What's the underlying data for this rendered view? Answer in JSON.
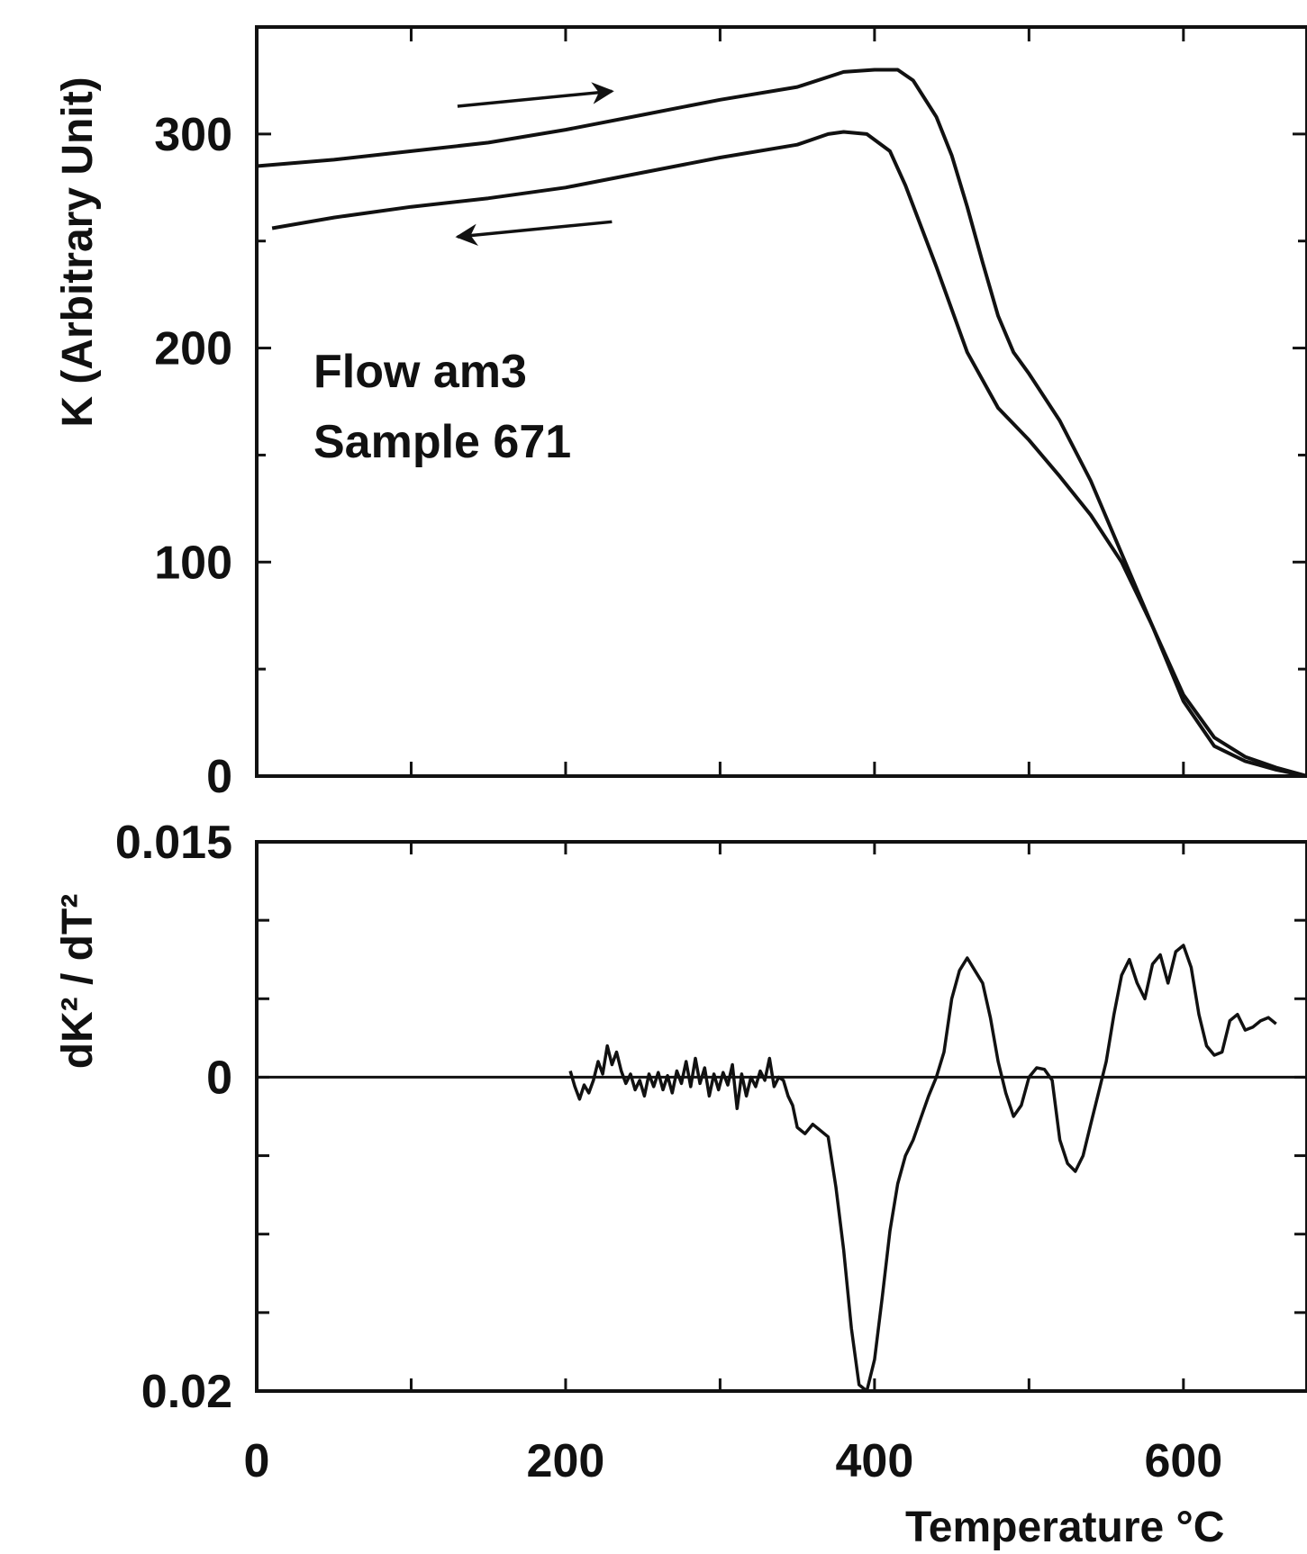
{
  "chart_data": [
    {
      "type": "line",
      "panel": "top",
      "ylabel": "K (Arbitrary Unit)",
      "xlim": [
        0,
        680
      ],
      "ylim": [
        0,
        350
      ],
      "y_ticks": [
        0,
        100,
        200,
        300
      ],
      "x_ticks": [
        0,
        200,
        400,
        600
      ],
      "grid": false,
      "annotation_lines": [
        "Flow am3",
        "Sample 671"
      ],
      "series": [
        {
          "direction": "heating",
          "x": [
            0,
            50,
            100,
            150,
            200,
            250,
            300,
            350,
            380,
            400,
            415,
            425,
            440,
            450,
            460,
            470,
            480,
            490,
            500,
            520,
            540,
            560,
            580,
            600,
            620,
            640,
            660,
            680
          ],
          "y": [
            285,
            288,
            292,
            296,
            302,
            309,
            316,
            322,
            329,
            330,
            330,
            325,
            308,
            290,
            266,
            240,
            215,
            198,
            188,
            166,
            138,
            104,
            70,
            38,
            18,
            9,
            4,
            0
          ]
        },
        {
          "direction": "cooling",
          "x": [
            10,
            50,
            100,
            150,
            200,
            250,
            300,
            350,
            370,
            380,
            395,
            410,
            420,
            440,
            460,
            480,
            500,
            520,
            540,
            560,
            580,
            600,
            620,
            640,
            660,
            680
          ],
          "y": [
            256,
            261,
            266,
            270,
            275,
            282,
            289,
            295,
            300,
            301,
            300,
            292,
            276,
            238,
            198,
            172,
            157,
            140,
            122,
            100,
            70,
            35,
            14,
            7,
            3,
            0
          ]
        }
      ],
      "arrows": [
        {
          "direction": "right",
          "from": [
            130,
            313
          ],
          "to": [
            230,
            320
          ]
        },
        {
          "direction": "left",
          "from": [
            230,
            259
          ],
          "to": [
            130,
            252
          ]
        }
      ]
    },
    {
      "type": "line",
      "panel": "bottom",
      "ylabel": "dK² / dT²",
      "xlabel": "Temperature °C",
      "xlim": [
        0,
        680
      ],
      "ylim": [
        -0.02,
        0.015
      ],
      "y_tick_labels": [
        {
          "value": 0.015,
          "label": "0.015"
        },
        {
          "value": 0,
          "label": "0"
        },
        {
          "value": -0.02,
          "label": "0.02"
        }
      ],
      "x_ticks": [
        0,
        200,
        400,
        600
      ],
      "zero_line": true,
      "grid": false,
      "series": [
        {
          "x": [
            203,
            206,
            209,
            212,
            215,
            218,
            221,
            224,
            227,
            230,
            233,
            236,
            239,
            242,
            245,
            248,
            251,
            254,
            257,
            260,
            263,
            266,
            269,
            272,
            275,
            278,
            281,
            284,
            287,
            290,
            293,
            296,
            299,
            302,
            305,
            308,
            311,
            314,
            317,
            320,
            323,
            326,
            329,
            332,
            335,
            338,
            341,
            344,
            347,
            350,
            355,
            360,
            365,
            370,
            375,
            380,
            385,
            390,
            395,
            400,
            405,
            410,
            415,
            420,
            425,
            430,
            435,
            440,
            445,
            450,
            455,
            460,
            465,
            470,
            475,
            480,
            485,
            490,
            495,
            500,
            505,
            510,
            515,
            520,
            525,
            530,
            535,
            540,
            545,
            550,
            555,
            560,
            565,
            570,
            575,
            580,
            585,
            590,
            595,
            600,
            605,
            610,
            615,
            620,
            625,
            630,
            635,
            640,
            645,
            650,
            655,
            660
          ],
          "y": [
            0.0004,
            -0.0006,
            -0.0014,
            -0.0005,
            -0.001,
            -0.0002,
            0.001,
            0.0002,
            0.002,
            0.0008,
            0.0016,
            0.0004,
            -0.0004,
            0.0002,
            -0.0008,
            -0.0002,
            -0.0012,
            0.0002,
            -0.0006,
            0.0003,
            -0.0008,
            0.0001,
            -0.001,
            0.0004,
            -0.0004,
            0.001,
            -0.0006,
            0.0012,
            -0.0004,
            0.0006,
            -0.0012,
            0.0002,
            -0.0008,
            0.0003,
            -0.0005,
            0.0008,
            -0.002,
            0.0002,
            -0.0012,
            0.0,
            -0.0006,
            0.0004,
            -0.0002,
            0.0012,
            -0.0006,
            0.0,
            -0.0002,
            -0.0012,
            -0.0018,
            -0.0032,
            -0.0036,
            -0.003,
            -0.0034,
            -0.0038,
            -0.007,
            -0.011,
            -0.016,
            -0.0196,
            -0.02,
            -0.018,
            -0.014,
            -0.0098,
            -0.0068,
            -0.005,
            -0.004,
            -0.0026,
            -0.0012,
            0.0,
            0.0016,
            0.005,
            0.0068,
            0.0076,
            0.0068,
            0.006,
            0.0038,
            0.001,
            -0.001,
            -0.0025,
            -0.0018,
            0.0,
            0.0006,
            0.0005,
            -0.0002,
            -0.004,
            -0.0055,
            -0.006,
            -0.005,
            -0.003,
            -0.001,
            0.001,
            0.004,
            0.0065,
            0.0075,
            0.006,
            0.005,
            0.0072,
            0.0078,
            0.006,
            0.008,
            0.0084,
            0.007,
            0.004,
            0.002,
            0.0014,
            0.0016,
            0.0036,
            0.004,
            0.003,
            0.0032,
            0.0036,
            0.0038,
            0.0034
          ]
        }
      ]
    }
  ]
}
